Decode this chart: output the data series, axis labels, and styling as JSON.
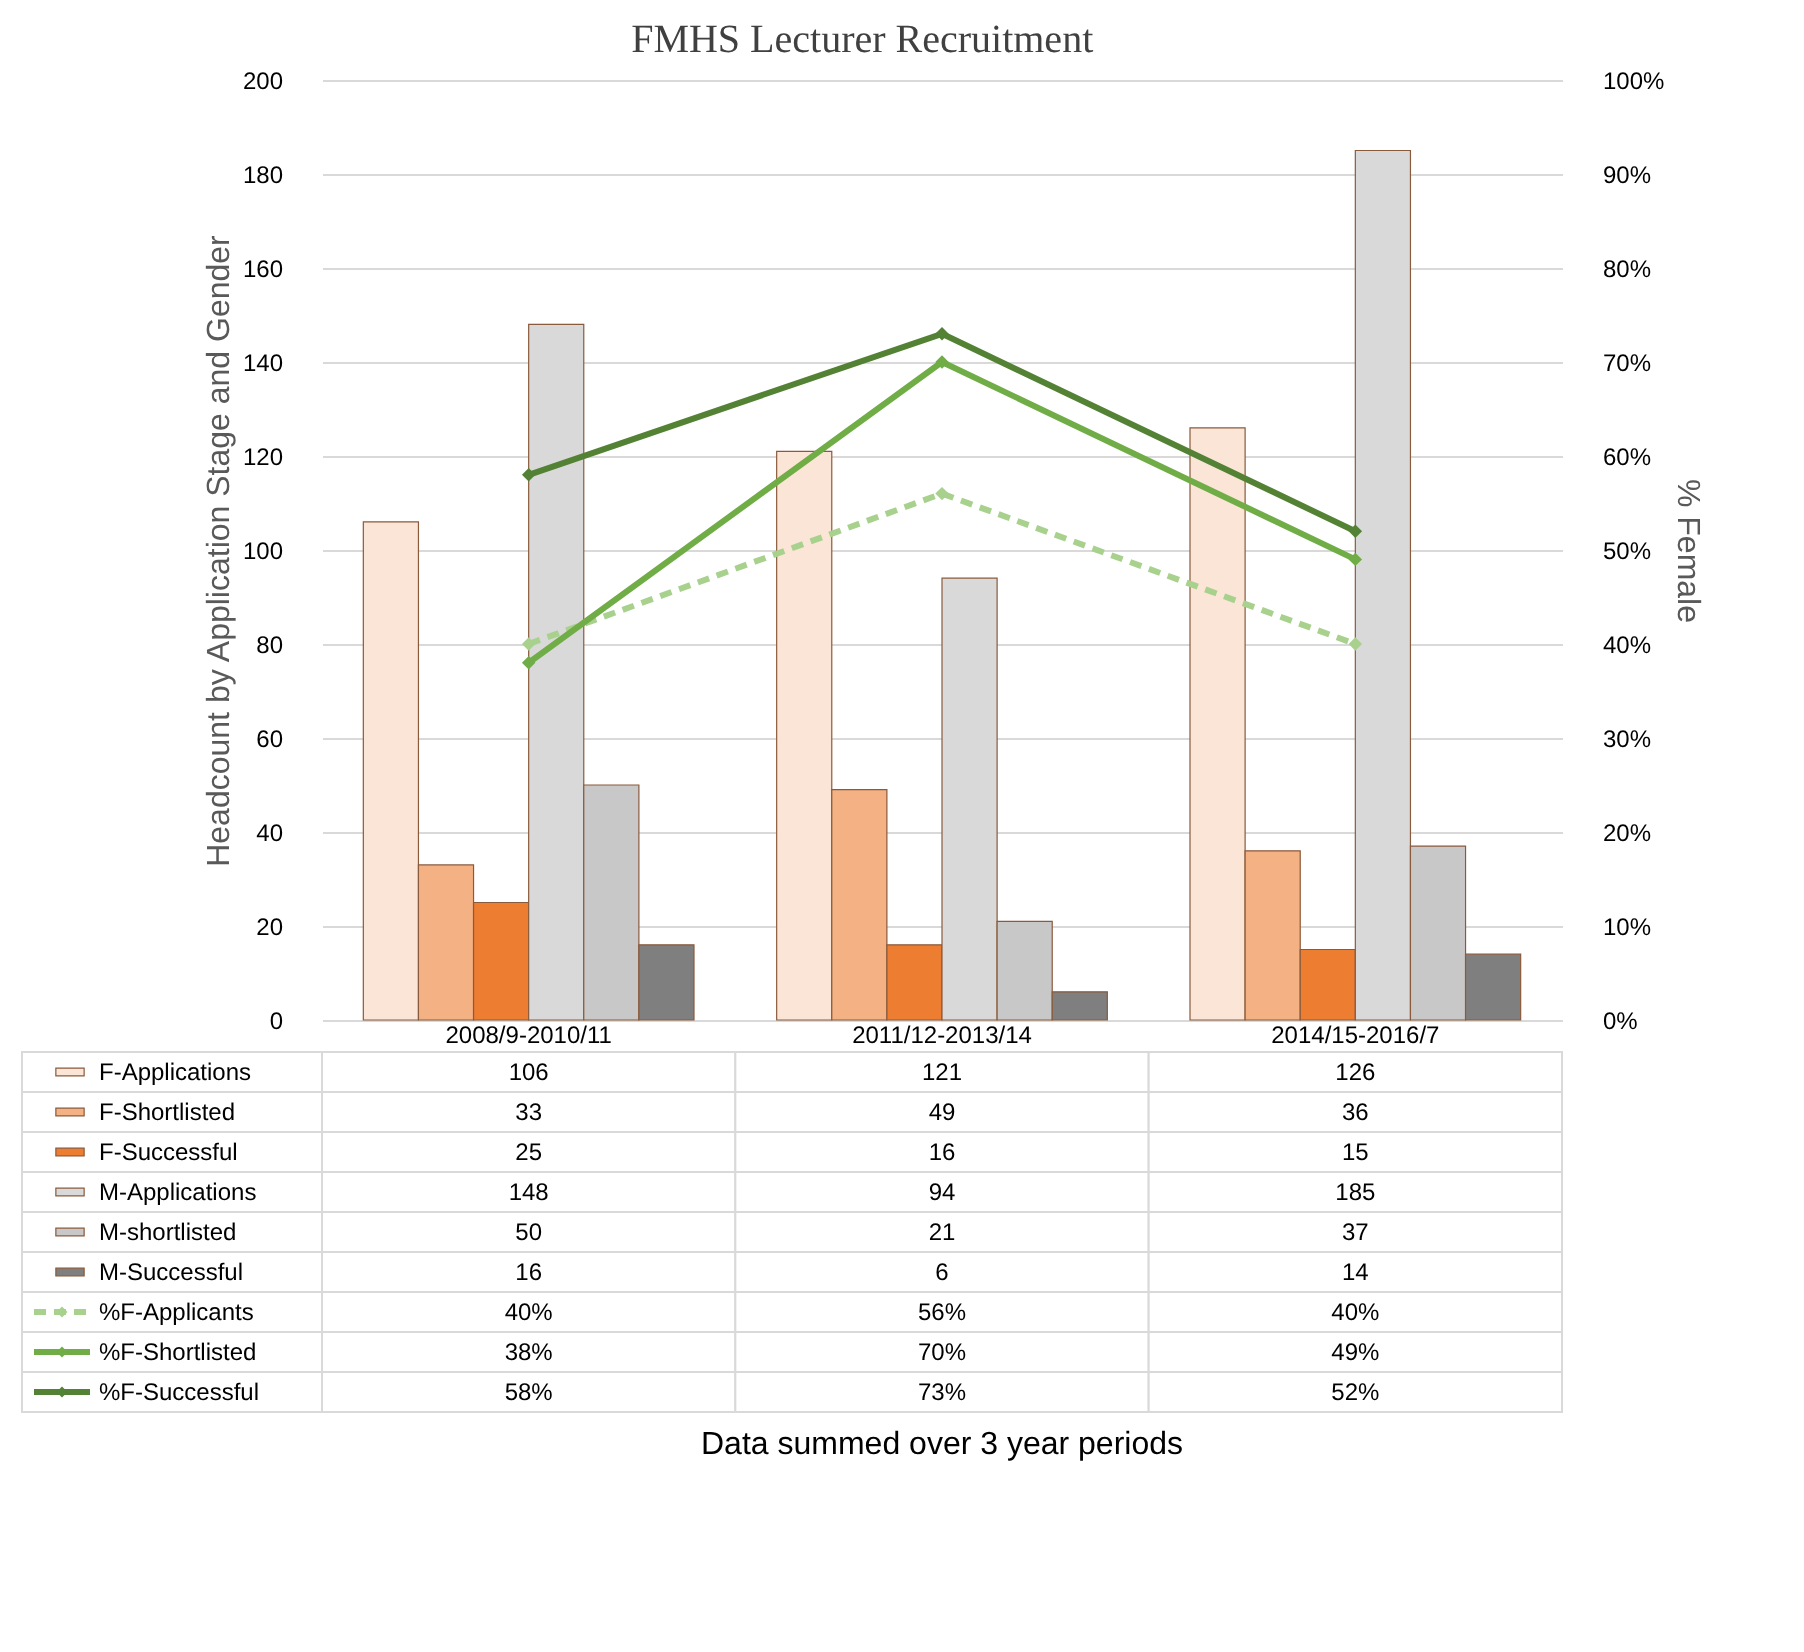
{
  "chart_data": {
    "type": "bar",
    "title": "FMHS Lecturer Recruitment",
    "categories": [
      "2008/9-2010/11",
      "2011/12-2013/14",
      "2014/15-2016/7"
    ],
    "annotations": [
      "Data summed over 3 year periods"
    ],
    "ylabel": "Headcount by Application Stage and Gender",
    "y2label": "% Female",
    "ylim": [
      0,
      200
    ],
    "yticks": [
      0,
      20,
      40,
      60,
      80,
      100,
      120,
      140,
      160,
      180,
      200
    ],
    "y2lim": [
      0,
      100
    ],
    "y2ticks": [
      {
        "value": 0,
        "label": "0%"
      },
      {
        "value": 10,
        "label": "10%"
      },
      {
        "value": 20,
        "label": "20%"
      },
      {
        "value": 30,
        "label": "30%"
      },
      {
        "value": 40,
        "label": "40%"
      },
      {
        "value": 50,
        "label": "50%"
      },
      {
        "value": 60,
        "label": "60%"
      },
      {
        "value": 70,
        "label": "70%"
      },
      {
        "value": 80,
        "label": "80%"
      },
      {
        "value": 90,
        "label": "90%"
      },
      {
        "value": 100,
        "label": "100%"
      }
    ],
    "grid": "y",
    "legend": "bottom",
    "series": [
      {
        "name": "F-Applications",
        "color": "#fbe5d6",
        "values": [
          106,
          121,
          126
        ],
        "value_labels": [
          "106",
          "121",
          "126"
        ]
      },
      {
        "name": "F-Shortlisted",
        "color": "#f4b183",
        "values": [
          33,
          49,
          36
        ],
        "value_labels": [
          "33",
          "49",
          "36"
        ]
      },
      {
        "name": "F-Successful",
        "color": "#ed7d31",
        "values": [
          25,
          16,
          15
        ],
        "value_labels": [
          "25",
          "16",
          "15"
        ]
      },
      {
        "name": "M-Applications",
        "color": "#d9d9d9",
        "values": [
          148,
          94,
          185
        ],
        "value_labels": [
          "148",
          "94",
          "185"
        ]
      },
      {
        "name": "M-shortlisted",
        "color": "#c8c8c8",
        "values": [
          50,
          21,
          37
        ],
        "value_labels": [
          "50",
          "21",
          "37"
        ]
      },
      {
        "name": "M-Successful",
        "color": "#7f7f7f",
        "values": [
          16,
          6,
          14
        ],
        "value_labels": [
          "16",
          "6",
          "14"
        ]
      },
      {
        "name": "%F-Applicants",
        "type": "line",
        "axis": "y2",
        "color": "#a9d18e",
        "line_style": "dashed",
        "marker": "diamond",
        "values": [
          40,
          56,
          40
        ],
        "value_labels": [
          "40%",
          "56%",
          "40%"
        ]
      },
      {
        "name": "%F-Shortlisted",
        "type": "line",
        "axis": "y2",
        "color": "#70ad47",
        "line_style": "solid",
        "marker": "diamond",
        "values": [
          38,
          70,
          49
        ],
        "value_labels": [
          "38%",
          "70%",
          "49%"
        ]
      },
      {
        "name": "%F-Successful",
        "type": "line",
        "axis": "y2",
        "color": "#548235",
        "line_style": "solid",
        "marker": "diamond",
        "values": [
          58,
          73,
          52
        ],
        "value_labels": [
          "58%",
          "73%",
          "52%"
        ]
      }
    ]
  }
}
